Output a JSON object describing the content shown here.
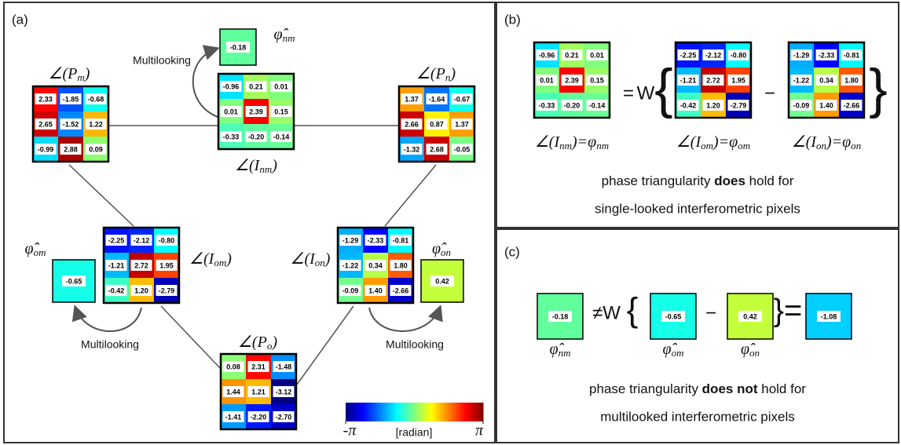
{
  "panel_labels": [
    "(a)",
    "(b)",
    "(c)"
  ],
  "multilooking": [
    "Multilooking",
    "Multilooking",
    "Multilooking"
  ],
  "grids": {
    "Pm": {
      "label": [
        "∠(P",
        "m",
        ")"
      ],
      "values": [
        [
          "2.33",
          "-1.85",
          "-0.68"
        ],
        [
          "2.65",
          "-1.52",
          "1.22"
        ],
        [
          "-0.99",
          "2.88",
          "0.09"
        ]
      ]
    },
    "Inm": {
      "label": [
        "∠(I",
        "nm",
        ")"
      ],
      "values": [
        [
          "-0.96",
          "0.21",
          "0.01"
        ],
        [
          "0.01",
          "2.39",
          "0.15"
        ],
        [
          "-0.33",
          "-0.20",
          "-0.14"
        ]
      ]
    },
    "Pn": {
      "label": [
        "∠(P",
        "n",
        ")"
      ],
      "values": [
        [
          "1.37",
          "-1.64",
          "-0.67"
        ],
        [
          "2.66",
          "0.87",
          "1.37"
        ],
        [
          "-1.32",
          "2.68",
          "-0.05"
        ]
      ]
    },
    "Iom": {
      "label": [
        "∠(I",
        "om",
        ")"
      ],
      "values": [
        [
          "-2.25",
          "-2.12",
          "-0.80"
        ],
        [
          "-1.21",
          "2.72",
          "1.95"
        ],
        [
          "-0.42",
          "1.20",
          "-2.79"
        ]
      ]
    },
    "Ion": {
      "label": [
        "∠(I",
        "on",
        ")"
      ],
      "values": [
        [
          "-1.29",
          "-2.33",
          "-0.81"
        ],
        [
          "-1.22",
          "0.34",
          "1.80"
        ],
        [
          "-0.09",
          "1.40",
          "-2.66"
        ]
      ]
    },
    "Po": {
      "label": [
        "∠(P",
        "o",
        ")"
      ],
      "values": [
        [
          "0.08",
          "2.31",
          "-1.48"
        ],
        [
          "1.44",
          "1.21",
          "-3.12"
        ],
        [
          "-1.41",
          "-2.20",
          "-2.70"
        ]
      ]
    }
  },
  "singles": {
    "nm": {
      "label": [
        "φ̂",
        "nm"
      ],
      "value": "-0.18"
    },
    "om": {
      "label": [
        "φ̂",
        "om"
      ],
      "value": "-0.65"
    },
    "on": {
      "label": [
        "φ̂",
        "on"
      ],
      "value": "0.42"
    },
    "result": {
      "value": "-1.08"
    }
  },
  "colorbar": {
    "label": "[radian]",
    "ticks": [
      {
        "value": -3.14159,
        "label": "-π"
      },
      {
        "value": 3.14159,
        "label": "π"
      }
    ]
  },
  "panel_b": {
    "labels": [
      [
        "∠(I",
        "nm",
        ")=φ",
        "nm"
      ],
      [
        "∠(I",
        "om",
        ")=φ",
        "om"
      ],
      [
        "∠(I",
        "on",
        ")=φ",
        "on"
      ]
    ],
    "equals": "=",
    "W": "W",
    "open": "{",
    "minus": "−",
    "close": "}",
    "line1": {
      "before": "phase triangularity ",
      "bold": "does",
      "after": " hold for"
    },
    "line2": "single-looked interferometric pixels"
  },
  "panel_c": {
    "neq": "≠W",
    "open": "{",
    "minus": "−",
    "close": "}=",
    "line1": {
      "before": "phase triangularity ",
      "bold": "does not",
      "after": " hold for"
    },
    "line2": "multilooked interferometric pixels"
  }
}
